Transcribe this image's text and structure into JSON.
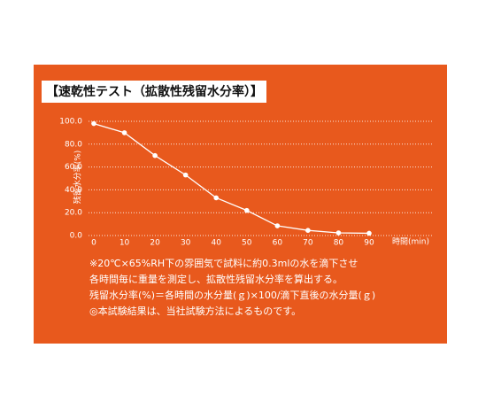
{
  "chart_data": {
    "type": "line",
    "title": "【速乾性テスト（拡散性残留水分率）】",
    "x_label": "時間(min)",
    "y_label": "残留水分率(%)",
    "x": [
      0,
      10,
      20,
      30,
      40,
      50,
      60,
      70,
      80,
      90
    ],
    "series": [
      {
        "name": "残留水分率",
        "color": "#ffffff",
        "values": [
          98,
          90,
          70,
          53,
          33,
          22,
          8.5,
          4.5,
          2.3,
          2
        ]
      }
    ],
    "xlim": [
      0,
      90
    ],
    "xticks": [
      0,
      10,
      20,
      30,
      40,
      50,
      60,
      70,
      80,
      90
    ],
    "ylim": [
      0,
      100
    ],
    "yticks": [
      {
        "value": 0,
        "label": "0.0"
      },
      {
        "value": 20,
        "label": "20.0"
      },
      {
        "value": 40,
        "label": "40.0"
      },
      {
        "value": 60,
        "label": "60.0"
      },
      {
        "value": 80,
        "label": "80.0"
      },
      {
        "value": 100,
        "label": "100.0"
      }
    ],
    "grid": true,
    "background": "#e8591d",
    "notes": [
      "※20℃×65%RH下の雰囲気で試料に約0.3mlの水を滴下させ",
      "各時間毎に重量を測定し、拡散性残留水分率を算出する。",
      "残留水分率(%)＝各時間の水分量(ｇ)×100/滴下直後の水分量(ｇ)",
      "◎本試験結果は、当社試験方法によるものです。"
    ]
  }
}
